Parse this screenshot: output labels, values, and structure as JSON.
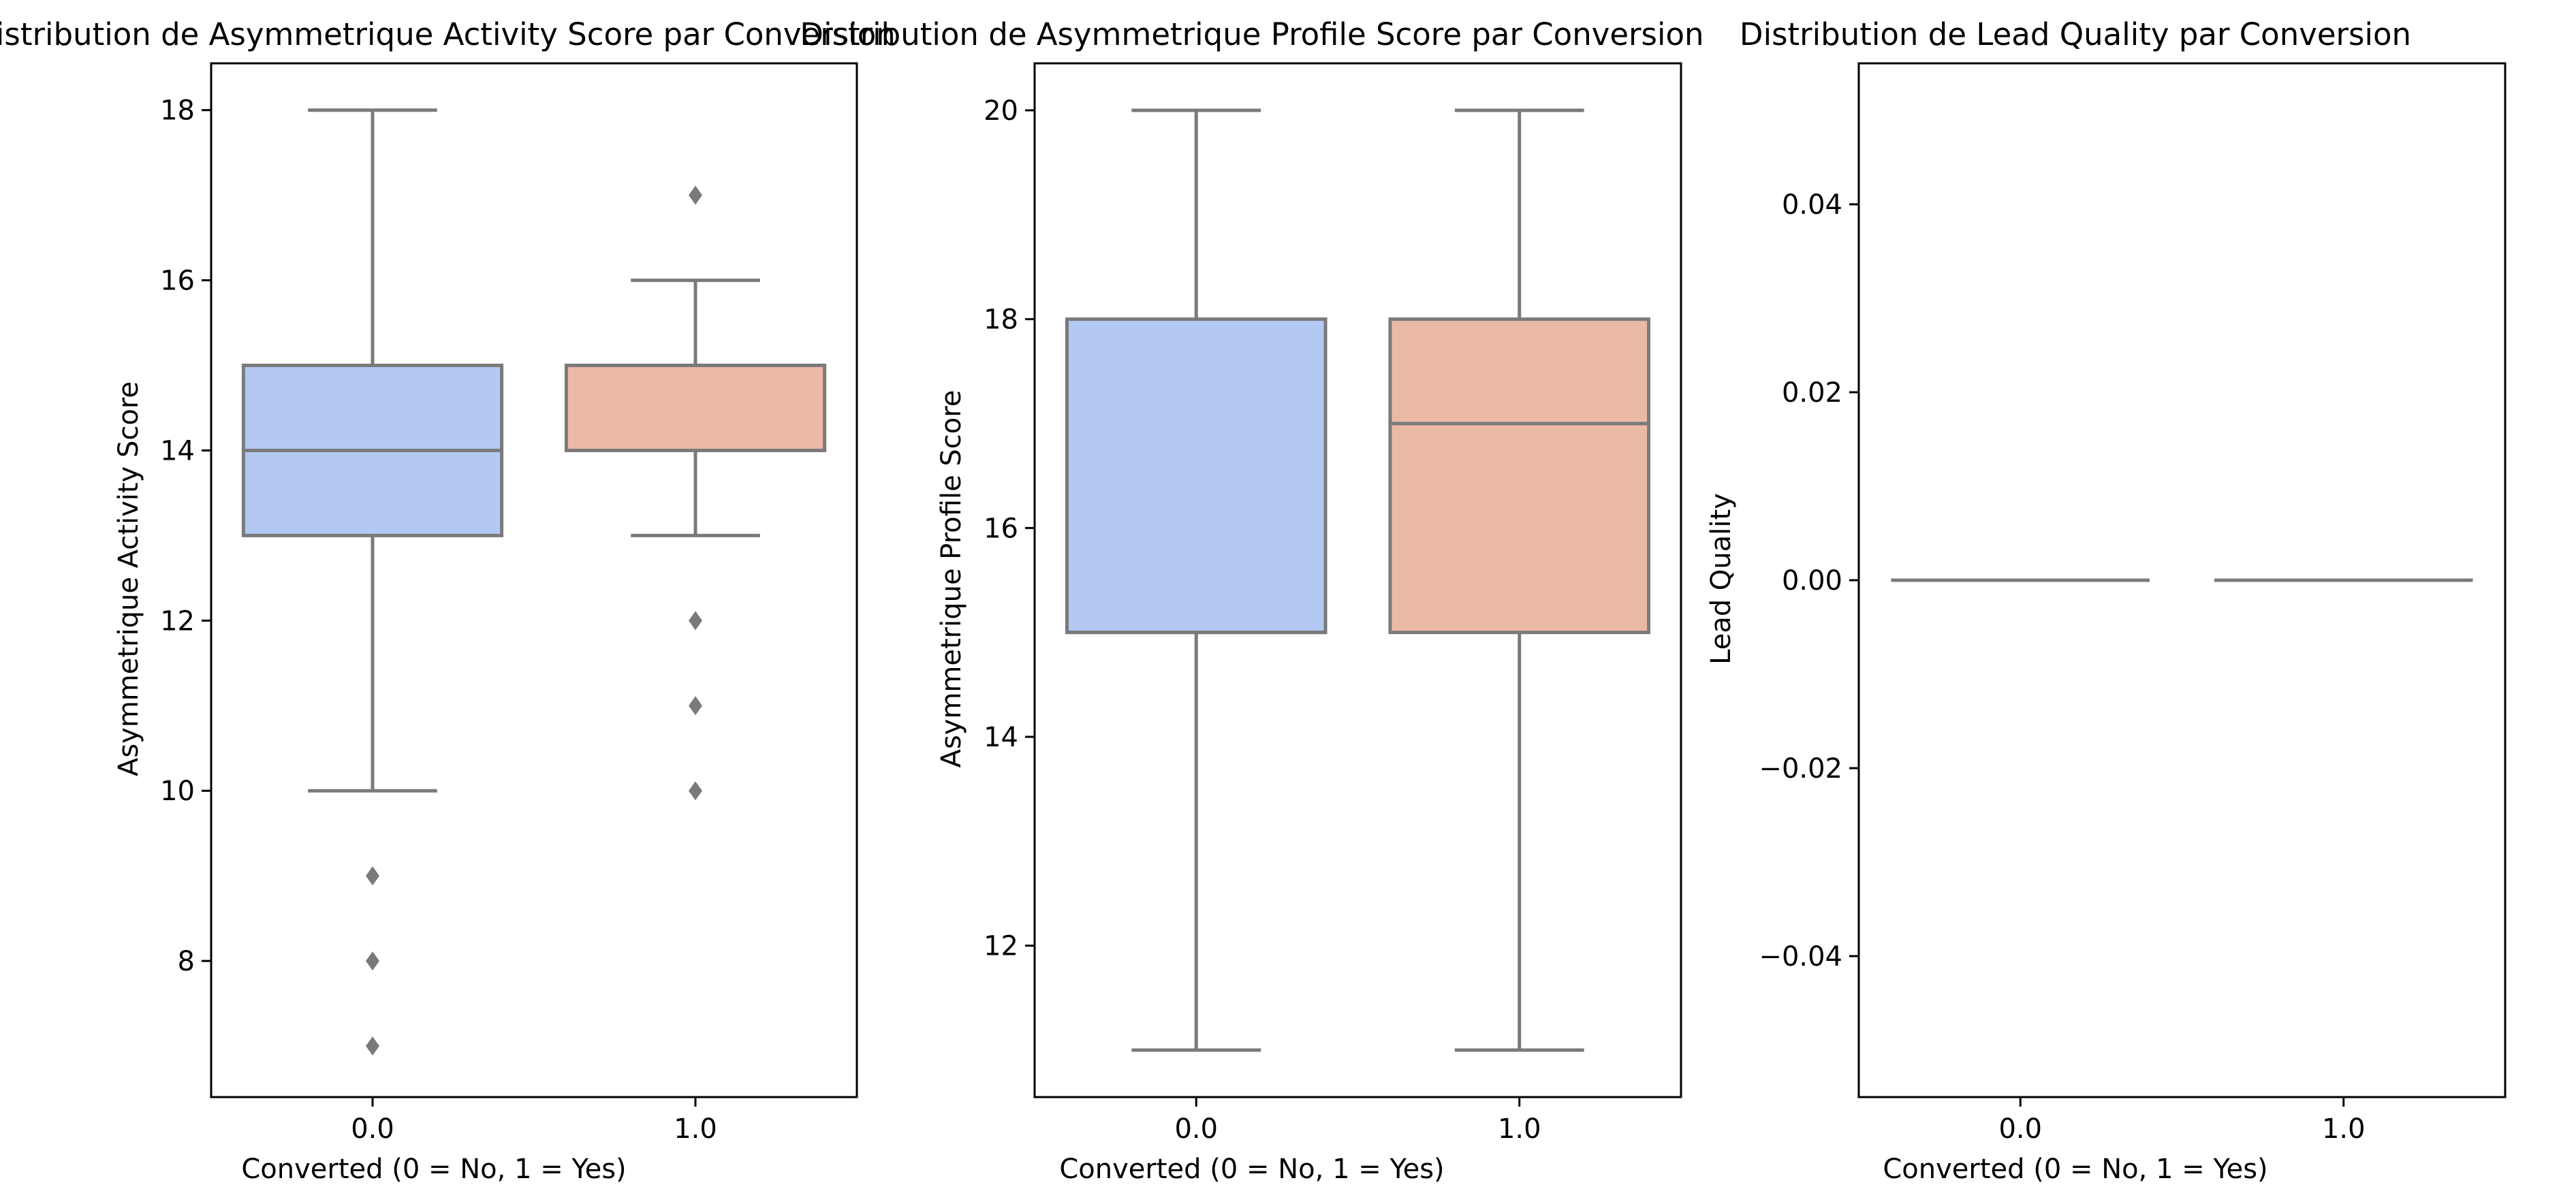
{
  "colors": {
    "class_0": "#b3c8f3",
    "class_1": "#ebbaa6",
    "box_edge": "#7a7a7a",
    "axis": "#000000",
    "background": "#ffffff"
  },
  "chart_data": [
    {
      "type": "box",
      "title": "Distribution de Asymmetrique Activity Score par Conversion",
      "xlabel": "Converted (0 = No, 1 = Yes)",
      "ylabel": "Asymmetrique Activity Score",
      "categories": [
        "0.0",
        "1.0"
      ],
      "ylim": [
        6.4,
        18.55
      ],
      "yticks": [
        8,
        10,
        12,
        14,
        16,
        18
      ],
      "ytick_labels": [
        "8",
        "10",
        "12",
        "14",
        "16",
        "18"
      ],
      "grid": false,
      "boxes": [
        {
          "category": "0.0",
          "whisker_low": 10,
          "q1": 13,
          "median": 14,
          "q3": 15,
          "whisker_high": 18,
          "outliers": [
            9,
            8,
            7
          ]
        },
        {
          "category": "1.0",
          "whisker_low": 13,
          "q1": 14,
          "median": 15,
          "q3": 15,
          "whisker_high": 16,
          "outliers": [
            17,
            12,
            11,
            10
          ]
        }
      ]
    },
    {
      "type": "box",
      "title": "Distribution de Asymmetrique Profile Score par Conversion",
      "xlabel": "Converted (0 = No, 1 = Yes)",
      "ylabel": "Asymmetrique Profile Score",
      "categories": [
        "0.0",
        "1.0"
      ],
      "ylim": [
        10.55,
        20.45
      ],
      "yticks": [
        12,
        14,
        16,
        18,
        20
      ],
      "ytick_labels": [
        "12",
        "14",
        "16",
        "18",
        "20"
      ],
      "grid": false,
      "boxes": [
        {
          "category": "0.0",
          "whisker_low": 11,
          "q1": 15,
          "median": 15,
          "q3": 18,
          "whisker_high": 20,
          "outliers": []
        },
        {
          "category": "1.0",
          "whisker_low": 11,
          "q1": 15,
          "median": 17,
          "q3": 18,
          "whisker_high": 20,
          "outliers": []
        }
      ]
    },
    {
      "type": "box",
      "title": "Distribution de Lead Quality par Conversion",
      "xlabel": "Converted (0 = No, 1 = Yes)",
      "ylabel": "Lead Quality",
      "categories": [
        "0.0",
        "1.0"
      ],
      "ylim": [
        -0.055,
        0.055
      ],
      "yticks": [
        -0.04,
        -0.02,
        0.0,
        0.02,
        0.04
      ],
      "ytick_labels": [
        "−0.04",
        "−0.02",
        "0.00",
        "0.02",
        "0.04"
      ],
      "grid": false,
      "boxes": [
        {
          "category": "0.0",
          "whisker_low": 0,
          "q1": 0,
          "median": 0,
          "q3": 0,
          "whisker_high": 0,
          "outliers": []
        },
        {
          "category": "1.0",
          "whisker_low": 0,
          "q1": 0,
          "median": 0,
          "q3": 0,
          "whisker_high": 0,
          "outliers": []
        }
      ]
    }
  ]
}
